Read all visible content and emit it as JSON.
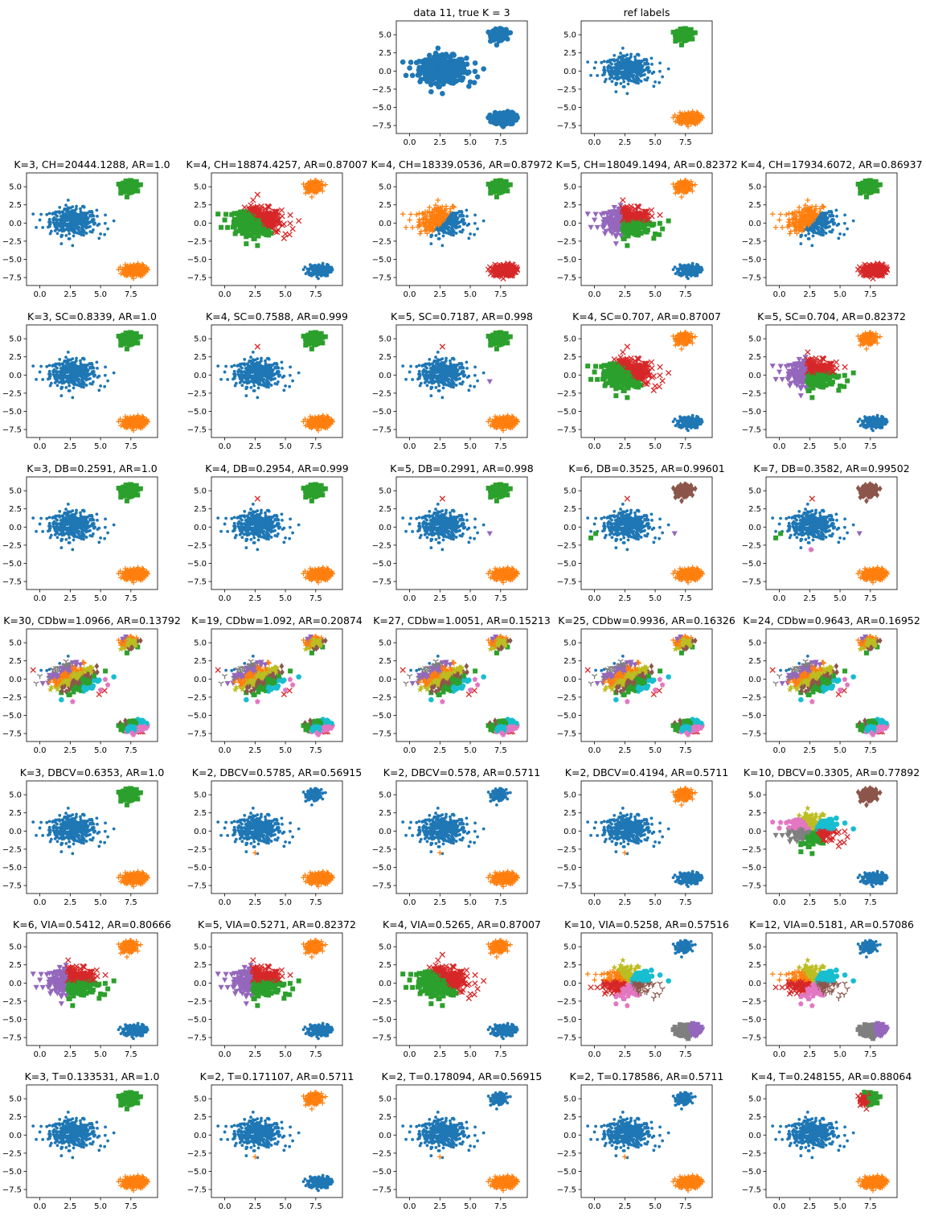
{
  "figure": {
    "colors": [
      "#1f77b4",
      "#ff7f0e",
      "#2ca02c",
      "#d62728",
      "#9467bd",
      "#8c564b",
      "#e377c2",
      "#7f7f7f",
      "#bcbd22",
      "#17becf"
    ],
    "markers": [
      "circle-dot",
      "plus",
      "square",
      "x",
      "triangle-down",
      "diamond",
      "pentagon",
      "tri-down",
      "star",
      "big-circle"
    ]
  },
  "chart_data": [
    {
      "type": "scatter",
      "title": "data 11, true K = 3",
      "scheme": "raw"
    },
    {
      "type": "scatter",
      "title": "ref labels",
      "scheme": "ref"
    },
    {
      "type": "scatter",
      "title": "K=3, CH=20444.1288, AR=1.0",
      "scheme": "ref"
    },
    {
      "type": "scatter",
      "title": "K=4, CH=18874.4257, AR=0.87007",
      "scheme": "k4split"
    },
    {
      "type": "scatter",
      "title": "K=4, CH=18339.0536, AR=0.87972",
      "scheme": "k4splitB"
    },
    {
      "type": "scatter",
      "title": "K=5, CH=18049.1494, AR=0.82372",
      "scheme": "k5split"
    },
    {
      "type": "scatter",
      "title": "K=4, CH=17934.6072, AR=0.86937",
      "scheme": "k4splitB"
    },
    {
      "type": "scatter",
      "title": "K=3, SC=0.8339, AR=1.0",
      "scheme": "ref"
    },
    {
      "type": "scatter",
      "title": "K=4, SC=0.7588, AR=0.999",
      "scheme": "ref1out"
    },
    {
      "type": "scatter",
      "title": "K=5, SC=0.7187, AR=0.998",
      "scheme": "ref2out"
    },
    {
      "type": "scatter",
      "title": "K=4, SC=0.707, AR=0.87007",
      "scheme": "k4split"
    },
    {
      "type": "scatter",
      "title": "K=5, SC=0.704, AR=0.82372",
      "scheme": "k5split"
    },
    {
      "type": "scatter",
      "title": "K=3, DB=0.2591, AR=1.0",
      "scheme": "ref"
    },
    {
      "type": "scatter",
      "title": "K=4, DB=0.2954, AR=0.999",
      "scheme": "ref1out"
    },
    {
      "type": "scatter",
      "title": "K=5, DB=0.2991, AR=0.998",
      "scheme": "ref2out"
    },
    {
      "type": "scatter",
      "title": "K=6, DB=0.3525, AR=0.99601",
      "scheme": "ref3out"
    },
    {
      "type": "scatter",
      "title": "K=7, DB=0.3582, AR=0.99502",
      "scheme": "ref4out"
    },
    {
      "type": "scatter",
      "title": "K=30, CDbw=1.0966, AR=0.13792",
      "scheme": "frag"
    },
    {
      "type": "scatter",
      "title": "K=19, CDbw=1.092, AR=0.20874",
      "scheme": "frag"
    },
    {
      "type": "scatter",
      "title": "K=27, CDbw=1.0051, AR=0.15213",
      "scheme": "frag"
    },
    {
      "type": "scatter",
      "title": "K=25, CDbw=0.9936, AR=0.16326",
      "scheme": "frag"
    },
    {
      "type": "scatter",
      "title": "K=24, CDbw=0.9643, AR=0.16952",
      "scheme": "frag"
    },
    {
      "type": "scatter",
      "title": "K=3, DBCV=0.6353, AR=1.0",
      "scheme": "ref"
    },
    {
      "type": "scatter",
      "title": "K=2, DBCV=0.5785, AR=0.56915",
      "scheme": "k2a"
    },
    {
      "type": "scatter",
      "title": "K=2, DBCV=0.578, AR=0.5711",
      "scheme": "k2a"
    },
    {
      "type": "scatter",
      "title": "K=2, DBCV=0.4194, AR=0.5711",
      "scheme": "k2b"
    },
    {
      "type": "scatter",
      "title": "K=10, DBCV=0.3305, AR=0.77892",
      "scheme": "k10"
    },
    {
      "type": "scatter",
      "title": "K=6, VIA=0.5412, AR=0.80666",
      "scheme": "k5split"
    },
    {
      "type": "scatter",
      "title": "K=5, VIA=0.5271, AR=0.82372",
      "scheme": "k5split"
    },
    {
      "type": "scatter",
      "title": "K=4, VIA=0.5265, AR=0.87007",
      "scheme": "k4split"
    },
    {
      "type": "scatter",
      "title": "K=10, VIA=0.5258, AR=0.57516",
      "scheme": "k10b"
    },
    {
      "type": "scatter",
      "title": "K=12, VIA=0.5181, AR=0.57086",
      "scheme": "k10b"
    },
    {
      "type": "scatter",
      "title": "K=3, T=0.133531, AR=1.0",
      "scheme": "ref"
    },
    {
      "type": "scatter",
      "title": "K=2, T=0.171107, AR=0.5711",
      "scheme": "k2b"
    },
    {
      "type": "scatter",
      "title": "K=2, T=0.178094, AR=0.56915",
      "scheme": "k2a"
    },
    {
      "type": "scatter",
      "title": "K=2, T=0.178586, AR=0.5711",
      "scheme": "k2a"
    },
    {
      "type": "scatter",
      "title": "K=4, T=0.248155, AR=0.88064",
      "scheme": "k4top"
    }
  ],
  "axes": {
    "xlim": [
      -1.1,
      9.7
    ],
    "ylim": [
      -8.6,
      6.9
    ],
    "xticks": [
      0,
      2.5,
      5,
      7.5
    ],
    "xtick_labels": [
      "0.0",
      "2.5",
      "5.0",
      "7.5"
    ],
    "yticks": [
      5,
      2.5,
      0,
      -2.5,
      -5,
      -7.5
    ],
    "ytick_labels": [
      "5.0",
      "2.5",
      "0.0",
      "−2.5",
      "−5.0",
      "−7.5"
    ]
  }
}
